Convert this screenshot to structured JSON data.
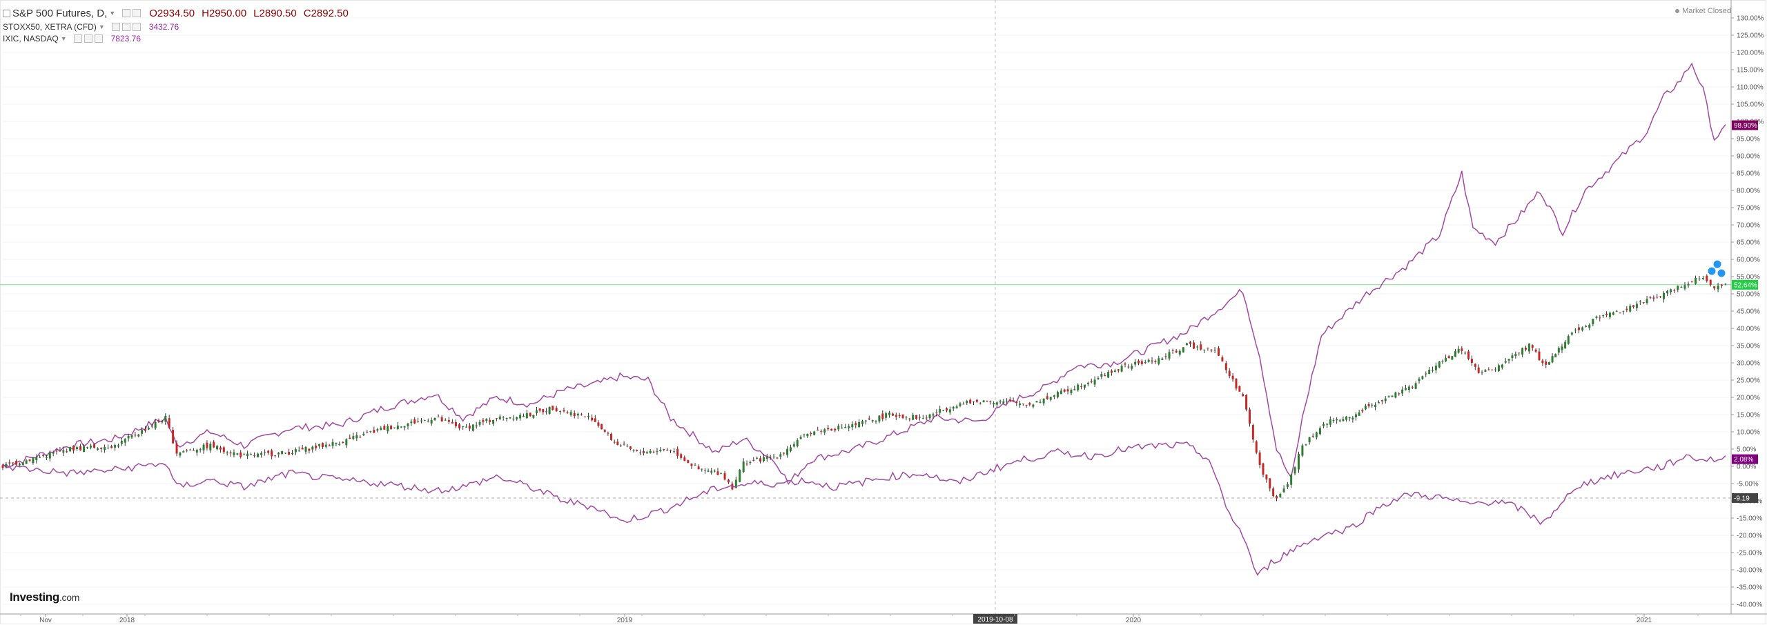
{
  "header": {
    "main_symbol": "S&P 500 Futures, D,",
    "open": "O2934.50",
    "high": "H2950.00",
    "low": "L2890.50",
    "close": "C2892.50",
    "series2_symbol": "STOXX50, XETRA (CFD)",
    "series2_value": "3432.76",
    "series3_symbol": "IXIC, NASDAQ",
    "series3_value": "7823.76",
    "market_status": "Market Closed"
  },
  "logo": {
    "brand": "Investing",
    "suffix": ".com"
  },
  "crosshair_label": "2019-10-08",
  "chart_data": {
    "type": "line",
    "title": "",
    "x_ticks": [
      "Nov",
      "2018",
      "2019",
      "2019-10-08",
      "2020",
      "2021"
    ],
    "y_ticks": [
      "130.00%",
      "125.00%",
      "120.00%",
      "115.00%",
      "110.00%",
      "105.00%",
      "100.00%",
      "95.00%",
      "90.00%",
      "85.00%",
      "80.00%",
      "75.00%",
      "70.00%",
      "65.00%",
      "60.00%",
      "55.00%",
      "50.00%",
      "45.00%",
      "40.00%",
      "35.00%",
      "30.00%",
      "25.00%",
      "20.00%",
      "15.00%",
      "10.00%",
      "5.00%",
      "0.00%",
      "-5.00%",
      "-10.00%",
      "-15.00%",
      "-20.00%",
      "-25.00%",
      "-30.00%",
      "-35.00%",
      "-40.00%"
    ],
    "ylim": [
      -42,
      133
    ],
    "y_scale": "percent",
    "current_price_line": 52.64,
    "baseline_line": -9.19,
    "price_tags": [
      {
        "label": "98.90%",
        "value": 98.9,
        "color": "#800060"
      },
      {
        "label": "52.64%",
        "value": 52.64,
        "color": "#22cc44"
      },
      {
        "label": "2.08%",
        "value": 2.08,
        "color": "#800080"
      },
      {
        "label": "-9.19",
        "value": -9.19,
        "color": "#444444"
      }
    ],
    "series": [
      {
        "name": "IXIC, NASDAQ",
        "style": "line",
        "color": "#a04aa0",
        "points": [
          [
            0,
            0
          ],
          [
            60,
            6
          ],
          [
            100,
            8
          ],
          [
            145,
            14
          ],
          [
            155,
            6
          ],
          [
            185,
            10
          ],
          [
            215,
            6
          ],
          [
            255,
            11
          ],
          [
            300,
            12
          ],
          [
            340,
            17
          ],
          [
            385,
            21
          ],
          [
            410,
            14
          ],
          [
            440,
            20
          ],
          [
            470,
            18
          ],
          [
            500,
            22
          ],
          [
            530,
            24
          ],
          [
            550,
            26
          ],
          [
            575,
            25
          ],
          [
            595,
            14
          ],
          [
            615,
            9
          ],
          [
            635,
            4
          ],
          [
            660,
            8
          ],
          [
            690,
            1
          ],
          [
            700,
            -5
          ],
          [
            720,
            2
          ],
          [
            760,
            5
          ],
          [
            800,
            10
          ],
          [
            830,
            14
          ],
          [
            870,
            13
          ],
          [
            900,
            19
          ],
          [
            930,
            23
          ],
          [
            955,
            29
          ],
          [
            990,
            30
          ],
          [
            1020,
            34
          ],
          [
            1055,
            39
          ],
          [
            1080,
            45
          ],
          [
            1105,
            51
          ],
          [
            1120,
            32
          ],
          [
            1135,
            5
          ],
          [
            1148,
            -4
          ],
          [
            1158,
            14
          ],
          [
            1175,
            38
          ],
          [
            1215,
            50
          ],
          [
            1250,
            58
          ],
          [
            1280,
            67
          ],
          [
            1300,
            85
          ],
          [
            1310,
            69
          ],
          [
            1330,
            65
          ],
          [
            1350,
            72
          ],
          [
            1370,
            80
          ],
          [
            1390,
            68
          ],
          [
            1410,
            80
          ],
          [
            1440,
            89
          ],
          [
            1465,
            97
          ],
          [
            1480,
            107
          ],
          [
            1495,
            112
          ],
          [
            1505,
            117
          ],
          [
            1515,
            109
          ],
          [
            1525,
            95
          ],
          [
            1535,
            98
          ]
        ]
      },
      {
        "name": "S&P 500 Futures",
        "style": "candles",
        "colors": {
          "up": "#2e7d32",
          "down": "#c62828"
        },
        "points": [
          [
            0,
            0
          ],
          [
            60,
            5
          ],
          [
            100,
            6
          ],
          [
            145,
            14
          ],
          [
            155,
            4
          ],
          [
            185,
            6
          ],
          [
            215,
            3
          ],
          [
            255,
            4
          ],
          [
            300,
            7
          ],
          [
            340,
            11
          ],
          [
            385,
            14
          ],
          [
            410,
            11
          ],
          [
            440,
            14
          ],
          [
            470,
            15
          ],
          [
            490,
            17
          ],
          [
            500,
            16
          ],
          [
            525,
            14
          ],
          [
            545,
            7
          ],
          [
            565,
            4
          ],
          [
            595,
            5
          ],
          [
            620,
            -1
          ],
          [
            640,
            -2
          ],
          [
            650,
            -6
          ],
          [
            660,
            1
          ],
          [
            690,
            3
          ],
          [
            720,
            10
          ],
          [
            760,
            12
          ],
          [
            790,
            15
          ],
          [
            820,
            14
          ],
          [
            850,
            18
          ],
          [
            880,
            19
          ],
          [
            915,
            18
          ],
          [
            940,
            21
          ],
          [
            970,
            25
          ],
          [
            1000,
            29
          ],
          [
            1030,
            31
          ],
          [
            1055,
            35
          ],
          [
            1080,
            34
          ],
          [
            1090,
            28
          ],
          [
            1105,
            20
          ],
          [
            1120,
            0
          ],
          [
            1135,
            -10
          ],
          [
            1148,
            -3
          ],
          [
            1158,
            6
          ],
          [
            1180,
            13
          ],
          [
            1200,
            14
          ],
          [
            1220,
            18
          ],
          [
            1250,
            22
          ],
          [
            1280,
            30
          ],
          [
            1300,
            34
          ],
          [
            1315,
            27
          ],
          [
            1330,
            28
          ],
          [
            1345,
            32
          ],
          [
            1360,
            35
          ],
          [
            1375,
            29
          ],
          [
            1395,
            38
          ],
          [
            1420,
            43
          ],
          [
            1450,
            46
          ],
          [
            1480,
            50
          ],
          [
            1505,
            54
          ],
          [
            1515,
            55
          ],
          [
            1525,
            52
          ],
          [
            1535,
            52.64
          ]
        ]
      },
      {
        "name": "STOXX50, XETRA (CFD)",
        "style": "line",
        "color": "#a04aa0",
        "points": [
          [
            0,
            0
          ],
          [
            60,
            -2
          ],
          [
            100,
            -1
          ],
          [
            145,
            1
          ],
          [
            155,
            -6
          ],
          [
            185,
            -4
          ],
          [
            215,
            -6
          ],
          [
            255,
            -2
          ],
          [
            300,
            -4
          ],
          [
            340,
            -5
          ],
          [
            385,
            -7
          ],
          [
            410,
            -6
          ],
          [
            440,
            -3
          ],
          [
            470,
            -6
          ],
          [
            500,
            -10
          ],
          [
            530,
            -12
          ],
          [
            550,
            -16
          ],
          [
            575,
            -14
          ],
          [
            595,
            -12
          ],
          [
            615,
            -9
          ],
          [
            640,
            -6
          ],
          [
            670,
            -5
          ],
          [
            690,
            -5
          ],
          [
            715,
            -4
          ],
          [
            740,
            -6
          ],
          [
            760,
            -5
          ],
          [
            790,
            -3
          ],
          [
            820,
            -2
          ],
          [
            850,
            -5
          ],
          [
            880,
            -1
          ],
          [
            910,
            2
          ],
          [
            940,
            4
          ],
          [
            970,
            3
          ],
          [
            1000,
            5
          ],
          [
            1030,
            6
          ],
          [
            1055,
            6
          ],
          [
            1075,
            2
          ],
          [
            1090,
            -12
          ],
          [
            1105,
            -20
          ],
          [
            1118,
            -32
          ],
          [
            1130,
            -28
          ],
          [
            1150,
            -24
          ],
          [
            1175,
            -20
          ],
          [
            1200,
            -18
          ],
          [
            1230,
            -11
          ],
          [
            1255,
            -8
          ],
          [
            1280,
            -9
          ],
          [
            1305,
            -11
          ],
          [
            1330,
            -10
          ],
          [
            1350,
            -12
          ],
          [
            1370,
            -16
          ],
          [
            1385,
            -13
          ],
          [
            1400,
            -6
          ],
          [
            1430,
            -3
          ],
          [
            1460,
            -1
          ],
          [
            1480,
            0
          ],
          [
            1500,
            3
          ],
          [
            1515,
            2
          ],
          [
            1525,
            2
          ],
          [
            1535,
            2.08
          ]
        ]
      }
    ]
  }
}
